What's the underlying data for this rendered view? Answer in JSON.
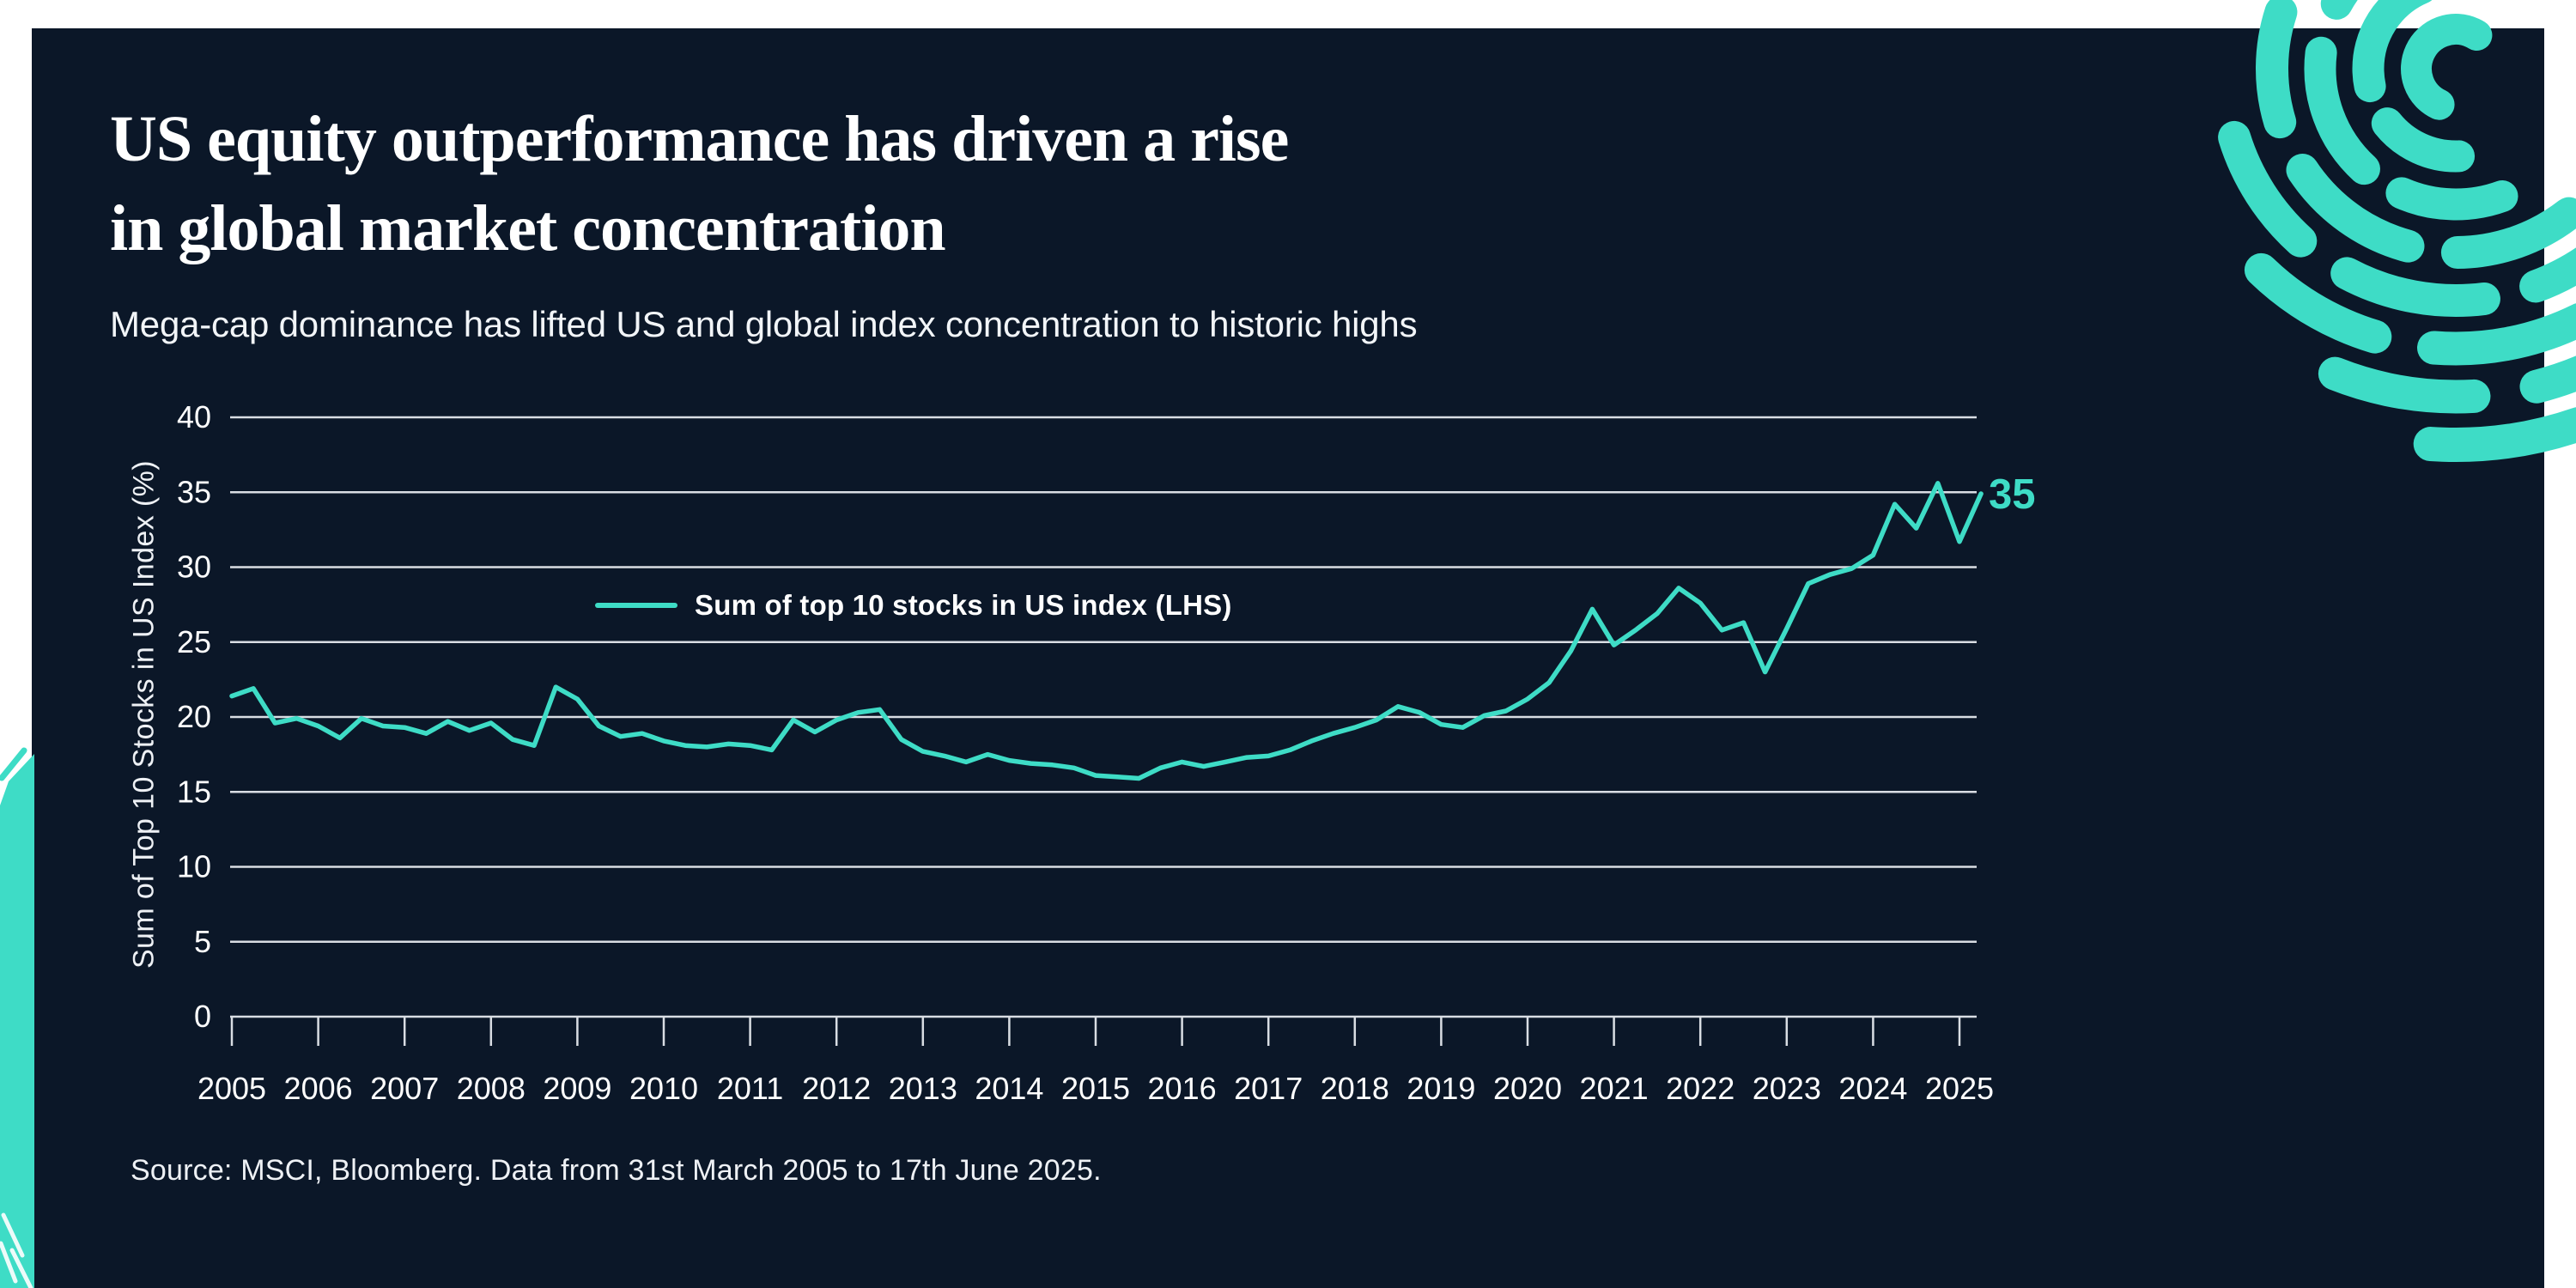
{
  "header": {
    "title_line1": "US equity outperformance has driven a rise",
    "title_line2": "in global market concentration",
    "subtitle": "Mega-cap dominance has lifted US and global index concentration to historic highs"
  },
  "footer": {
    "source": "Source: MSCI, Bloomberg. Data from 31st March 2005 to 17th June 2025."
  },
  "colors": {
    "page_background": "#ffffff",
    "card_background": "#0b1728",
    "accent_teal": "#3edcc6",
    "gridline": "#d9dde3",
    "text": "#ffffff"
  },
  "chart_data": {
    "type": "line",
    "title": "",
    "xlabel": "",
    "ylabel": "Sum of Top 10 Stocks in US Index (%)",
    "ylim": [
      0,
      40
    ],
    "y_ticks": [
      0,
      5,
      10,
      15,
      20,
      25,
      30,
      35,
      40
    ],
    "x_ticks": [
      2005,
      2006,
      2007,
      2008,
      2009,
      2010,
      2011,
      2012,
      2013,
      2014,
      2015,
      2016,
      2017,
      2018,
      2019,
      2020,
      2021,
      2022,
      2023,
      2024,
      2025
    ],
    "grid": "horizontal gridlines on, no vertical gridlines, no plot frame",
    "legend_position": "inside plot, upper-left area",
    "end_label": "35",
    "series": [
      {
        "name": "Sum of top 10 stocks in US index (LHS)",
        "color": "#3edcc6",
        "frequency": "quarterly",
        "x_start": 2005.0,
        "x_step_years": 0.25,
        "values": [
          21.4,
          21.9,
          19.6,
          19.9,
          19.4,
          18.6,
          19.9,
          19.4,
          19.3,
          18.9,
          19.7,
          19.1,
          19.6,
          18.5,
          18.1,
          22.0,
          21.2,
          19.4,
          18.7,
          18.9,
          18.4,
          18.1,
          18.0,
          18.2,
          18.1,
          17.8,
          19.8,
          19.0,
          19.8,
          20.3,
          20.5,
          18.5,
          17.7,
          17.4,
          17.0,
          17.5,
          17.1,
          16.9,
          16.8,
          16.6,
          16.1,
          16.0,
          15.9,
          16.6,
          17.0,
          16.7,
          17.0,
          17.3,
          17.4,
          17.8,
          18.4,
          18.9,
          19.3,
          19.8,
          20.7,
          20.3,
          19.5,
          19.3,
          20.1,
          20.4,
          21.2,
          22.3,
          24.4,
          27.2,
          24.8,
          25.8,
          26.9,
          28.6,
          27.6,
          25.8,
          26.3,
          23.0,
          25.9,
          28.9,
          29.5,
          29.9,
          30.8,
          34.2,
          32.6,
          35.6,
          31.7,
          34.9
        ]
      }
    ]
  }
}
